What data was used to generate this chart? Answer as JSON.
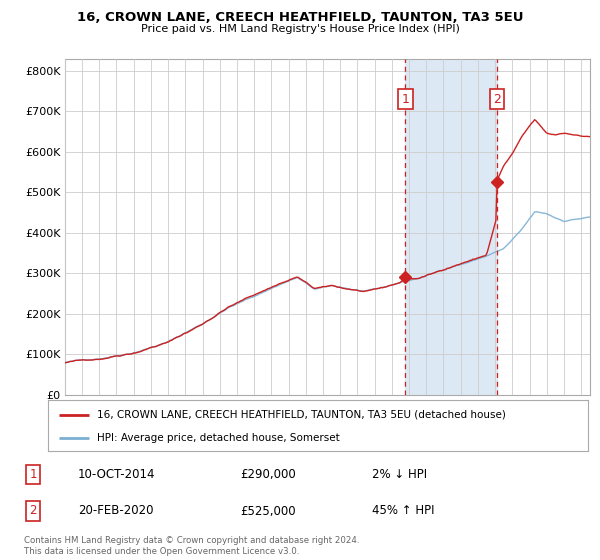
{
  "title": "16, CROWN LANE, CREECH HEATHFIELD, TAUNTON, TA3 5EU",
  "subtitle": "Price paid vs. HM Land Registry's House Price Index (HPI)",
  "ylabel_ticks": [
    "£0",
    "£100K",
    "£200K",
    "£300K",
    "£400K",
    "£500K",
    "£600K",
    "£700K",
    "£800K"
  ],
  "ytick_values": [
    0,
    100000,
    200000,
    300000,
    400000,
    500000,
    600000,
    700000,
    800000
  ],
  "ylim": [
    0,
    830000
  ],
  "xlim_start": 1995.0,
  "xlim_end": 2025.5,
  "hpi_color": "#7bafd4",
  "price_color": "#cc2222",
  "sale1_x": 2014.79,
  "sale1_y": 290000,
  "sale2_x": 2020.12,
  "sale2_y": 525000,
  "legend_line1": "16, CROWN LANE, CREECH HEATHFIELD, TAUNTON, TA3 5EU (detached house)",
  "legend_line2": "HPI: Average price, detached house, Somerset",
  "table_row1": [
    "1",
    "10-OCT-2014",
    "£290,000",
    "2% ↓ HPI"
  ],
  "table_row2": [
    "2",
    "20-FEB-2020",
    "£525,000",
    "45% ↑ HPI"
  ],
  "footnote": "Contains HM Land Registry data © Crown copyright and database right 2024.\nThis data is licensed under the Open Government Licence v3.0.",
  "shaded_region_color": "#dce9f5",
  "vline_color": "#cc2222",
  "background_color": "#ffffff",
  "grid_color": "#cccccc"
}
